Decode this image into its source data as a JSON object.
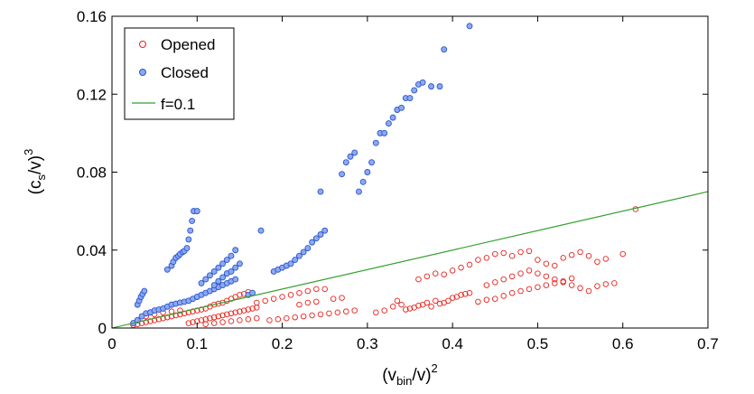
{
  "chart_data": {
    "type": "scatter",
    "title": "",
    "xlabel": {
      "base": "(v",
      "sub": "bin",
      "mid": "/v)",
      "sup": "2"
    },
    "ylabel": {
      "base": "(c",
      "sub": "s",
      "mid": "/v)",
      "sup": "3"
    },
    "xlim": [
      0,
      0.7
    ],
    "ylim": [
      0,
      0.16
    ],
    "x_ticks": [
      0,
      0.1,
      0.2,
      0.3,
      0.4,
      0.5,
      0.6,
      0.7
    ],
    "x_tick_labels": [
      "0",
      "0.1",
      "0.2",
      "0.3",
      "0.4",
      "0.5",
      "0.6",
      "0.7"
    ],
    "y_ticks": [
      0,
      0.04,
      0.08,
      0.12,
      0.16
    ],
    "y_tick_labels": [
      "0",
      "0.04",
      "0.08",
      "0.12",
      "0.16"
    ],
    "grid": false,
    "legend_position": "top-left",
    "legend": [
      "Opened",
      "Closed",
      "f=0.1"
    ],
    "colors": {
      "opened": "#e8231c",
      "closed": "#2a56d6",
      "closed_fill": "#8ea9ec",
      "line": "#33a02c"
    },
    "series": [
      {
        "name": "Opened",
        "marker": "open-circle",
        "points": [
          [
            0.025,
            0.0015
          ],
          [
            0.03,
            0.002
          ],
          [
            0.035,
            0.0025
          ],
          [
            0.04,
            0.003
          ],
          [
            0.045,
            0.0035
          ],
          [
            0.05,
            0.004
          ],
          [
            0.055,
            0.0045
          ],
          [
            0.06,
            0.005
          ],
          [
            0.065,
            0.0055
          ],
          [
            0.07,
            0.006
          ],
          [
            0.075,
            0.0065
          ],
          [
            0.08,
            0.007
          ],
          [
            0.085,
            0.0075
          ],
          [
            0.09,
            0.008
          ],
          [
            0.095,
            0.0085
          ],
          [
            0.1,
            0.009
          ],
          [
            0.105,
            0.0095
          ],
          [
            0.11,
            0.01
          ],
          [
            0.115,
            0.011
          ],
          [
            0.12,
            0.012
          ],
          [
            0.125,
            0.0125
          ],
          [
            0.13,
            0.013
          ],
          [
            0.135,
            0.014
          ],
          [
            0.14,
            0.015
          ],
          [
            0.145,
            0.016
          ],
          [
            0.15,
            0.017
          ],
          [
            0.155,
            0.0175
          ],
          [
            0.16,
            0.0185
          ],
          [
            0.09,
            0.0025
          ],
          [
            0.095,
            0.003
          ],
          [
            0.1,
            0.0035
          ],
          [
            0.105,
            0.004
          ],
          [
            0.11,
            0.0045
          ],
          [
            0.115,
            0.005
          ],
          [
            0.12,
            0.0055
          ],
          [
            0.125,
            0.006
          ],
          [
            0.13,
            0.0065
          ],
          [
            0.135,
            0.007
          ],
          [
            0.14,
            0.0075
          ],
          [
            0.145,
            0.008
          ],
          [
            0.15,
            0.0085
          ],
          [
            0.155,
            0.009
          ],
          [
            0.16,
            0.0095
          ],
          [
            0.165,
            0.01
          ],
          [
            0.17,
            0.0105
          ],
          [
            0.11,
            0.002
          ],
          [
            0.12,
            0.0025
          ],
          [
            0.13,
            0.003
          ],
          [
            0.14,
            0.0035
          ],
          [
            0.15,
            0.004
          ],
          [
            0.16,
            0.0045
          ],
          [
            0.17,
            0.005
          ],
          [
            0.04,
            0.006
          ],
          [
            0.05,
            0.007
          ],
          [
            0.06,
            0.008
          ],
          [
            0.07,
            0.0085
          ],
          [
            0.08,
            0.009
          ],
          [
            0.17,
            0.013
          ],
          [
            0.18,
            0.014
          ],
          [
            0.19,
            0.015
          ],
          [
            0.2,
            0.016
          ],
          [
            0.21,
            0.017
          ],
          [
            0.22,
            0.018
          ],
          [
            0.23,
            0.019
          ],
          [
            0.24,
            0.02
          ],
          [
            0.25,
            0.02
          ],
          [
            0.185,
            0.004
          ],
          [
            0.195,
            0.0045
          ],
          [
            0.205,
            0.005
          ],
          [
            0.215,
            0.0055
          ],
          [
            0.225,
            0.006
          ],
          [
            0.235,
            0.0065
          ],
          [
            0.245,
            0.007
          ],
          [
            0.255,
            0.0075
          ],
          [
            0.265,
            0.008
          ],
          [
            0.275,
            0.0085
          ],
          [
            0.285,
            0.009
          ],
          [
            0.22,
            0.012
          ],
          [
            0.23,
            0.013
          ],
          [
            0.24,
            0.0135
          ],
          [
            0.26,
            0.015
          ],
          [
            0.27,
            0.0155
          ],
          [
            0.31,
            0.008
          ],
          [
            0.32,
            0.009
          ],
          [
            0.33,
            0.011
          ],
          [
            0.335,
            0.014
          ],
          [
            0.34,
            0.012
          ],
          [
            0.345,
            0.0095
          ],
          [
            0.35,
            0.01
          ],
          [
            0.355,
            0.0105
          ],
          [
            0.36,
            0.0115
          ],
          [
            0.365,
            0.012
          ],
          [
            0.37,
            0.013
          ],
          [
            0.375,
            0.011
          ],
          [
            0.38,
            0.014
          ],
          [
            0.385,
            0.0125
          ],
          [
            0.39,
            0.013
          ],
          [
            0.395,
            0.014
          ],
          [
            0.4,
            0.0155
          ],
          [
            0.405,
            0.016
          ],
          [
            0.41,
            0.017
          ],
          [
            0.415,
            0.0175
          ],
          [
            0.42,
            0.018
          ],
          [
            0.43,
            0.0135
          ],
          [
            0.44,
            0.0145
          ],
          [
            0.45,
            0.015
          ],
          [
            0.46,
            0.0165
          ],
          [
            0.47,
            0.018
          ],
          [
            0.48,
            0.019
          ],
          [
            0.49,
            0.02
          ],
          [
            0.5,
            0.021
          ],
          [
            0.51,
            0.022
          ],
          [
            0.52,
            0.023
          ],
          [
            0.53,
            0.024
          ],
          [
            0.54,
            0.0255
          ],
          [
            0.36,
            0.025
          ],
          [
            0.37,
            0.0265
          ],
          [
            0.38,
            0.028
          ],
          [
            0.39,
            0.0275
          ],
          [
            0.4,
            0.0295
          ],
          [
            0.41,
            0.031
          ],
          [
            0.42,
            0.0325
          ],
          [
            0.43,
            0.035
          ],
          [
            0.44,
            0.036
          ],
          [
            0.45,
            0.038
          ],
          [
            0.46,
            0.0385
          ],
          [
            0.47,
            0.037
          ],
          [
            0.48,
            0.039
          ],
          [
            0.49,
            0.0395
          ],
          [
            0.5,
            0.035
          ],
          [
            0.51,
            0.033
          ],
          [
            0.52,
            0.032
          ],
          [
            0.53,
            0.036
          ],
          [
            0.54,
            0.0375
          ],
          [
            0.55,
            0.039
          ],
          [
            0.56,
            0.037
          ],
          [
            0.57,
            0.034
          ],
          [
            0.58,
            0.0355
          ],
          [
            0.44,
            0.022
          ],
          [
            0.45,
            0.0235
          ],
          [
            0.46,
            0.025
          ],
          [
            0.47,
            0.0265
          ],
          [
            0.48,
            0.028
          ],
          [
            0.49,
            0.0295
          ],
          [
            0.5,
            0.028
          ],
          [
            0.51,
            0.0265
          ],
          [
            0.52,
            0.025
          ],
          [
            0.53,
            0.0235
          ],
          [
            0.54,
            0.022
          ],
          [
            0.55,
            0.0205
          ],
          [
            0.56,
            0.019
          ],
          [
            0.57,
            0.0215
          ],
          [
            0.58,
            0.0225
          ],
          [
            0.59,
            0.023
          ],
          [
            0.6,
            0.038
          ],
          [
            0.615,
            0.061
          ]
        ]
      },
      {
        "name": "Closed",
        "marker": "filled-circle",
        "points": [
          [
            0.025,
            0.0025
          ],
          [
            0.03,
            0.004
          ],
          [
            0.035,
            0.006
          ],
          [
            0.04,
            0.0075
          ],
          [
            0.045,
            0.008
          ],
          [
            0.05,
            0.009
          ],
          [
            0.055,
            0.0095
          ],
          [
            0.06,
            0.01
          ],
          [
            0.065,
            0.011
          ],
          [
            0.07,
            0.012
          ],
          [
            0.075,
            0.0125
          ],
          [
            0.08,
            0.013
          ],
          [
            0.085,
            0.0135
          ],
          [
            0.09,
            0.014
          ],
          [
            0.095,
            0.015
          ],
          [
            0.1,
            0.016
          ],
          [
            0.105,
            0.017
          ],
          [
            0.11,
            0.018
          ],
          [
            0.115,
            0.019
          ],
          [
            0.12,
            0.02
          ],
          [
            0.125,
            0.021
          ],
          [
            0.13,
            0.022
          ],
          [
            0.135,
            0.023
          ],
          [
            0.14,
            0.024
          ],
          [
            0.145,
            0.025
          ],
          [
            0.03,
            0.012
          ],
          [
            0.032,
            0.014
          ],
          [
            0.034,
            0.016
          ],
          [
            0.036,
            0.0175
          ],
          [
            0.038,
            0.019
          ],
          [
            0.065,
            0.03
          ],
          [
            0.07,
            0.032
          ],
          [
            0.072,
            0.034
          ],
          [
            0.075,
            0.036
          ],
          [
            0.078,
            0.037
          ],
          [
            0.08,
            0.038
          ],
          [
            0.083,
            0.039
          ],
          [
            0.085,
            0.0395
          ],
          [
            0.088,
            0.041
          ],
          [
            0.09,
            0.0455
          ],
          [
            0.092,
            0.05
          ],
          [
            0.094,
            0.055
          ],
          [
            0.096,
            0.06
          ],
          [
            0.1,
            0.06
          ],
          [
            0.105,
            0.023
          ],
          [
            0.11,
            0.025
          ],
          [
            0.115,
            0.027
          ],
          [
            0.12,
            0.029
          ],
          [
            0.125,
            0.031
          ],
          [
            0.13,
            0.033
          ],
          [
            0.135,
            0.035
          ],
          [
            0.14,
            0.037
          ],
          [
            0.145,
            0.04
          ],
          [
            0.12,
            0.022
          ],
          [
            0.125,
            0.024
          ],
          [
            0.13,
            0.026
          ],
          [
            0.135,
            0.028
          ],
          [
            0.14,
            0.029
          ],
          [
            0.145,
            0.031
          ],
          [
            0.15,
            0.033
          ],
          [
            0.16,
            0.017
          ],
          [
            0.165,
            0.018
          ],
          [
            0.175,
            0.05
          ],
          [
            0.19,
            0.029
          ],
          [
            0.195,
            0.03
          ],
          [
            0.2,
            0.031
          ],
          [
            0.205,
            0.032
          ],
          [
            0.21,
            0.033
          ],
          [
            0.215,
            0.035
          ],
          [
            0.22,
            0.037
          ],
          [
            0.225,
            0.039
          ],
          [
            0.23,
            0.041
          ],
          [
            0.235,
            0.044
          ],
          [
            0.24,
            0.046
          ],
          [
            0.245,
            0.048
          ],
          [
            0.25,
            0.05
          ],
          [
            0.245,
            0.07
          ],
          [
            0.27,
            0.079
          ],
          [
            0.275,
            0.085
          ],
          [
            0.28,
            0.088
          ],
          [
            0.285,
            0.09
          ],
          [
            0.29,
            0.07
          ],
          [
            0.295,
            0.075
          ],
          [
            0.3,
            0.08
          ],
          [
            0.305,
            0.085
          ],
          [
            0.31,
            0.095
          ],
          [
            0.315,
            0.1
          ],
          [
            0.32,
            0.1
          ],
          [
            0.325,
            0.105
          ],
          [
            0.33,
            0.108
          ],
          [
            0.335,
            0.112
          ],
          [
            0.34,
            0.113
          ],
          [
            0.345,
            0.118
          ],
          [
            0.35,
            0.118
          ],
          [
            0.355,
            0.122
          ],
          [
            0.36,
            0.125
          ],
          [
            0.365,
            0.126
          ],
          [
            0.375,
            0.124
          ],
          [
            0.385,
            0.124
          ],
          [
            0.39,
            0.143
          ],
          [
            0.42,
            0.155
          ]
        ]
      },
      {
        "name": "f=0.1",
        "marker": "line",
        "x": [
          0,
          0.7
        ],
        "y": [
          0,
          0.07
        ]
      }
    ]
  }
}
